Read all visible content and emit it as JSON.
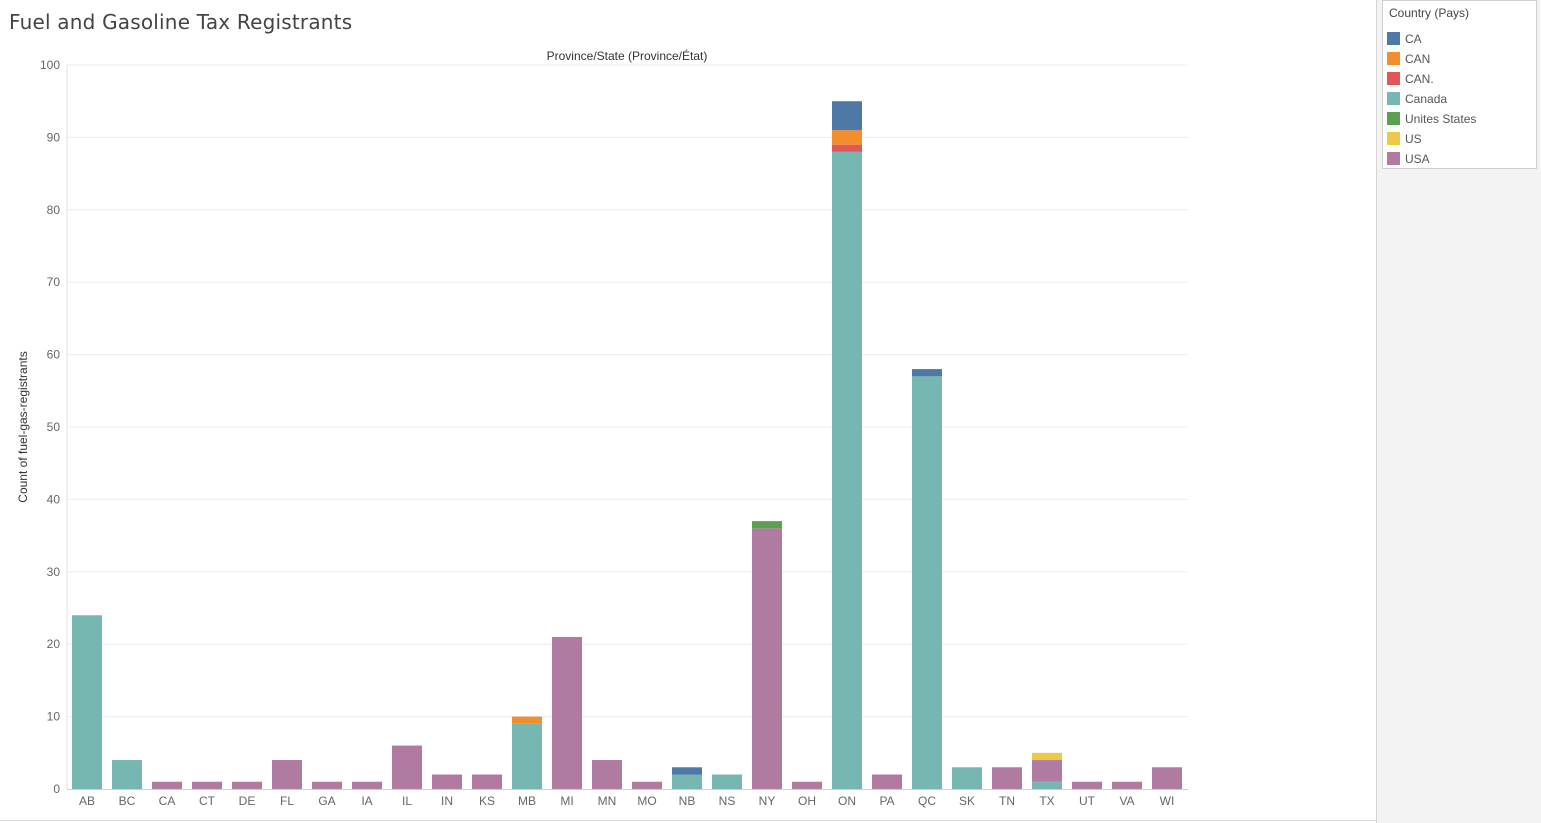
{
  "page": {
    "title": "Fuel and Gasoline Tax Registrants"
  },
  "legend": {
    "title": "Country (Pays)",
    "items": [
      {
        "label": "CA",
        "color": "#4e79a7"
      },
      {
        "label": "CAN",
        "color": "#f28e2b"
      },
      {
        "label": "CAN.",
        "color": "#e15759"
      },
      {
        "label": "Canada",
        "color": "#76b7b2"
      },
      {
        "label": "Unites States",
        "color": "#59a14f"
      },
      {
        "label": "US",
        "color": "#edc948"
      },
      {
        "label": "USA",
        "color": "#b07aa1"
      }
    ]
  },
  "chart_data": {
    "type": "bar",
    "stacked": true,
    "title": "Province/State (Province/État)",
    "xlabel": "",
    "ylabel": "Count of fuel-gas-registrants",
    "ylim": [
      0,
      100
    ],
    "yticks": [
      0,
      10,
      20,
      30,
      40,
      50,
      60,
      70,
      80,
      90,
      100
    ],
    "grid": true,
    "legend_position": "top-right",
    "categories": [
      "AB",
      "BC",
      "CA",
      "CT",
      "DE",
      "FL",
      "GA",
      "IA",
      "IL",
      "IN",
      "KS",
      "MB",
      "MI",
      "MN",
      "MO",
      "NB",
      "NS",
      "NY",
      "OH",
      "ON",
      "PA",
      "QC",
      "SK",
      "TN",
      "TX",
      "UT",
      "VA",
      "WI"
    ],
    "series": [
      {
        "name": "Canada",
        "color": "#76b7b2",
        "values": [
          24,
          4,
          0,
          0,
          0,
          0,
          0,
          0,
          0,
          0,
          0,
          9,
          0,
          0,
          0,
          2,
          2,
          0,
          0,
          88,
          0,
          57,
          3,
          0,
          1,
          0,
          0,
          0
        ]
      },
      {
        "name": "USA",
        "color": "#b07aa1",
        "values": [
          0,
          0,
          1,
          1,
          1,
          4,
          1,
          1,
          6,
          2,
          2,
          0,
          21,
          4,
          1,
          0,
          0,
          36,
          1,
          0,
          2,
          0,
          0,
          3,
          3,
          1,
          1,
          3
        ]
      },
      {
        "name": "US",
        "color": "#edc948",
        "values": [
          0,
          0,
          0,
          0,
          0,
          0,
          0,
          0,
          0,
          0,
          0,
          0,
          0,
          0,
          0,
          0,
          0,
          0,
          0,
          0,
          0,
          0,
          0,
          0,
          1,
          0,
          0,
          0
        ]
      },
      {
        "name": "Unites States",
        "color": "#59a14f",
        "values": [
          0,
          0,
          0,
          0,
          0,
          0,
          0,
          0,
          0,
          0,
          0,
          0,
          0,
          0,
          0,
          0,
          0,
          1,
          0,
          0,
          0,
          0,
          0,
          0,
          0,
          0,
          0,
          0
        ]
      },
      {
        "name": "CAN.",
        "color": "#e15759",
        "values": [
          0,
          0,
          0,
          0,
          0,
          0,
          0,
          0,
          0,
          0,
          0,
          0,
          0,
          0,
          0,
          0,
          0,
          0,
          0,
          1,
          0,
          0,
          0,
          0,
          0,
          0,
          0,
          0
        ]
      },
      {
        "name": "CAN",
        "color": "#f28e2b",
        "values": [
          0,
          0,
          0,
          0,
          0,
          0,
          0,
          0,
          0,
          0,
          0,
          1,
          0,
          0,
          0,
          0,
          0,
          0,
          0,
          2,
          0,
          0,
          0,
          0,
          0,
          0,
          0,
          0
        ]
      },
      {
        "name": "CA",
        "color": "#4e79a7",
        "values": [
          0,
          0,
          0,
          0,
          0,
          0,
          0,
          0,
          0,
          0,
          0,
          0,
          0,
          0,
          0,
          1,
          0,
          0,
          0,
          4,
          0,
          1,
          0,
          0,
          0,
          0,
          0,
          0
        ]
      }
    ]
  }
}
